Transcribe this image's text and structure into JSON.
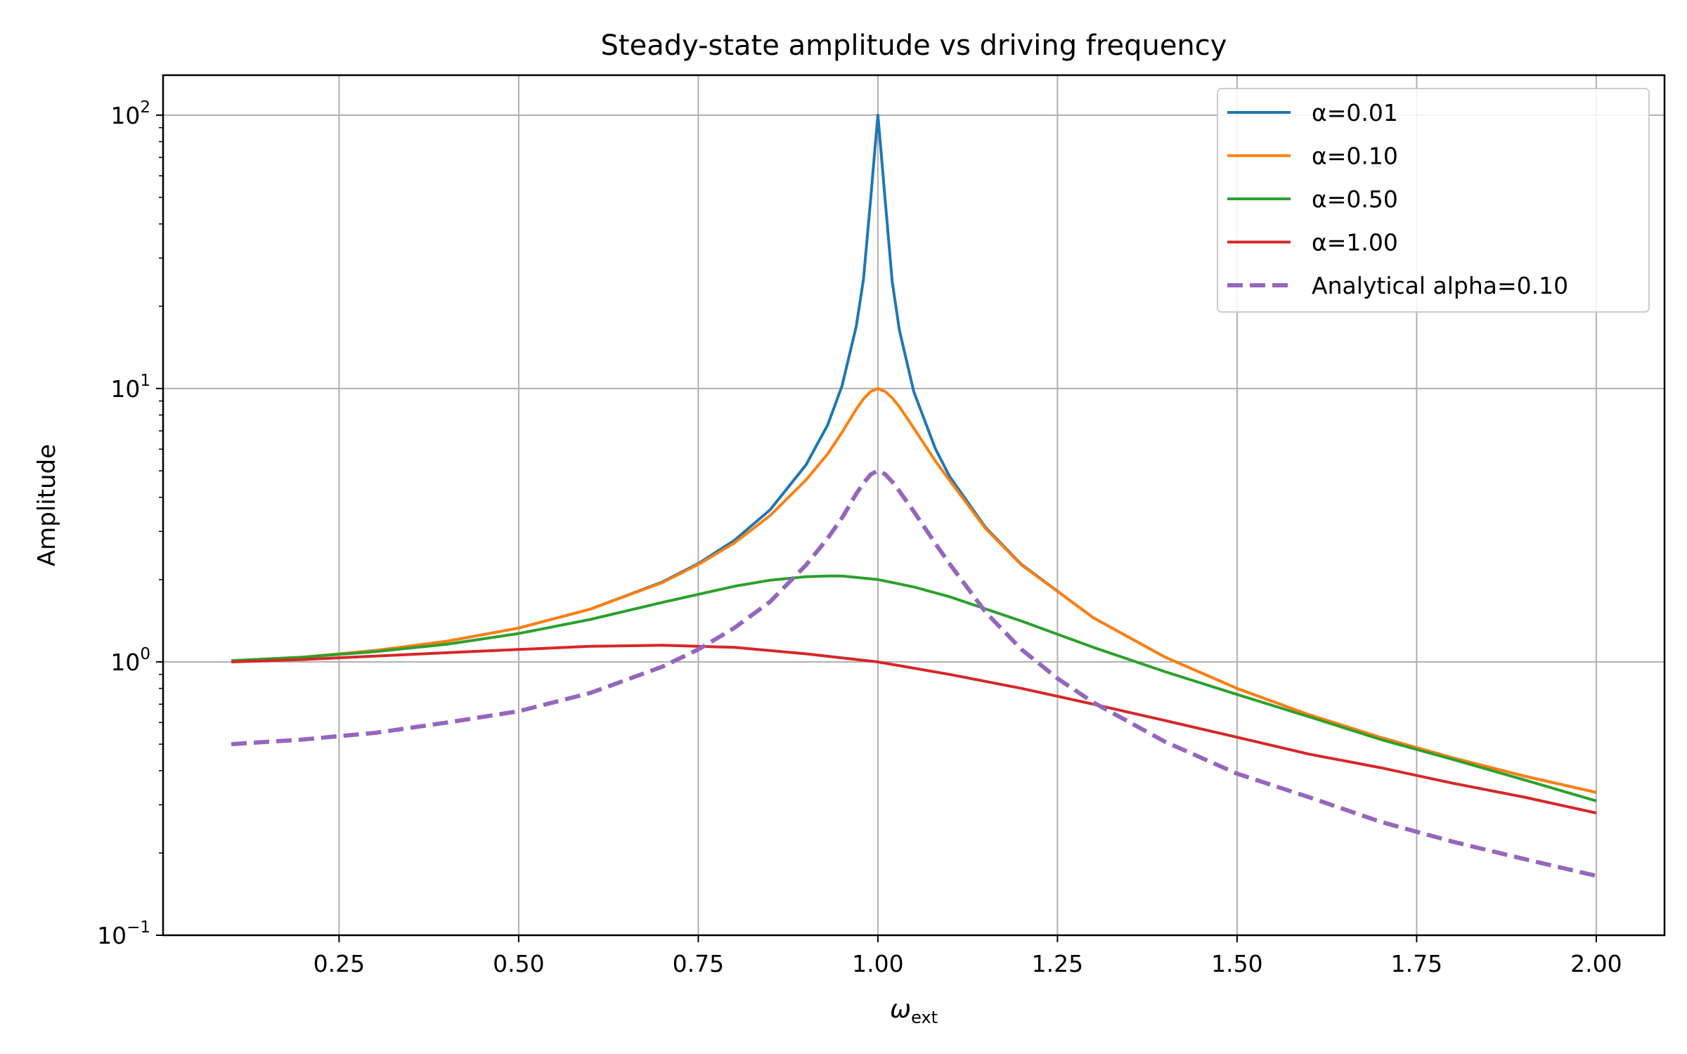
{
  "chart_data": {
    "type": "line",
    "title": "Steady-state amplitude vs driving frequency",
    "xlabel": "ω",
    "xlabel_sub": "ext",
    "ylabel": "Amplitude",
    "xscale": "linear",
    "yscale": "log",
    "xlim": [
      0.005,
      2.095
    ],
    "ylim": [
      0.1,
      140
    ],
    "grid": true,
    "legend_position": "upper right",
    "x_ticks": [
      {
        "value": 0.25,
        "label": "0.25"
      },
      {
        "value": 0.5,
        "label": "0.50"
      },
      {
        "value": 0.75,
        "label": "0.75"
      },
      {
        "value": 1.0,
        "label": "1.00"
      },
      {
        "value": 1.25,
        "label": "1.25"
      },
      {
        "value": 1.5,
        "label": "1.50"
      },
      {
        "value": 1.75,
        "label": "1.75"
      },
      {
        "value": 2.0,
        "label": "2.00"
      }
    ],
    "y_ticks": [
      {
        "value": 0.1,
        "base": "10",
        "exp": "−1"
      },
      {
        "value": 1,
        "base": "10",
        "exp": "0"
      },
      {
        "value": 10,
        "base": "10",
        "exp": "1"
      },
      {
        "value": 100,
        "base": "10",
        "exp": "2"
      }
    ],
    "series": [
      {
        "name": "α=0.01",
        "color": "#1f77b4",
        "style": "solid",
        "x": [
          0.1,
          0.2,
          0.3,
          0.4,
          0.5,
          0.6,
          0.7,
          0.75,
          0.8,
          0.85,
          0.9,
          0.93,
          0.95,
          0.97,
          0.98,
          0.99,
          0.995,
          1.0,
          1.005,
          1.01,
          1.02,
          1.03,
          1.05,
          1.08,
          1.1,
          1.15,
          1.2,
          1.3,
          1.4,
          1.5,
          1.6,
          1.7,
          1.8,
          1.9,
          2.0
        ],
        "y": [
          1.01,
          1.04,
          1.1,
          1.19,
          1.33,
          1.56,
          1.96,
          2.29,
          2.78,
          3.6,
          5.26,
          7.35,
          10.2,
          16.9,
          25.2,
          49.5,
          70.7,
          100,
          70.7,
          49.5,
          24.6,
          16.3,
          9.74,
          6.02,
          4.76,
          3.1,
          2.27,
          1.45,
          1.04,
          0.8,
          0.641,
          0.529,
          0.446,
          0.382,
          0.333
        ]
      },
      {
        "name": "α=0.10",
        "color": "#ff7f0e",
        "style": "solid",
        "x": [
          0.1,
          0.2,
          0.3,
          0.4,
          0.5,
          0.6,
          0.7,
          0.75,
          0.8,
          0.85,
          0.9,
          0.93,
          0.95,
          0.97,
          0.98,
          0.99,
          1.0,
          1.01,
          1.02,
          1.03,
          1.05,
          1.08,
          1.1,
          1.15,
          1.2,
          1.3,
          1.4,
          1.5,
          1.6,
          1.7,
          1.8,
          1.9,
          2.0
        ],
        "y": [
          1.01,
          1.04,
          1.1,
          1.19,
          1.33,
          1.56,
          1.95,
          2.27,
          2.72,
          3.43,
          4.63,
          5.76,
          6.91,
          8.41,
          9.16,
          9.75,
          10.0,
          9.76,
          9.24,
          8.57,
          7.16,
          5.43,
          4.6,
          3.07,
          2.26,
          1.45,
          1.04,
          0.8,
          0.641,
          0.529,
          0.446,
          0.382,
          0.333
        ]
      },
      {
        "name": "α=0.50",
        "color": "#2ca02c",
        "style": "solid",
        "x": [
          0.1,
          0.2,
          0.3,
          0.4,
          0.5,
          0.6,
          0.7,
          0.8,
          0.85,
          0.9,
          0.93,
          0.95,
          1.0,
          1.05,
          1.1,
          1.2,
          1.3,
          1.4,
          1.5,
          1.6,
          1.7,
          1.8,
          1.9,
          2.0
        ],
        "y": [
          1.01,
          1.04,
          1.09,
          1.16,
          1.27,
          1.43,
          1.65,
          1.89,
          1.99,
          2.05,
          2.06,
          2.06,
          2.0,
          1.88,
          1.73,
          1.41,
          1.13,
          0.92,
          0.76,
          0.63,
          0.52,
          0.44,
          0.37,
          0.31
        ]
      },
      {
        "name": "α=1.00",
        "color": "#d62728",
        "style": "solid",
        "x": [
          0.1,
          0.2,
          0.3,
          0.4,
          0.5,
          0.6,
          0.7,
          0.8,
          0.9,
          1.0,
          1.1,
          1.2,
          1.3,
          1.4,
          1.5,
          1.6,
          1.7,
          1.8,
          1.9,
          2.0
        ],
        "y": [
          1.0,
          1.02,
          1.05,
          1.08,
          1.11,
          1.14,
          1.15,
          1.13,
          1.07,
          1.0,
          0.9,
          0.8,
          0.7,
          0.61,
          0.53,
          0.46,
          0.41,
          0.36,
          0.32,
          0.28
        ]
      },
      {
        "name": "Analytical alpha=0.10",
        "color": "#9467bd",
        "style": "dashed",
        "x": [
          0.1,
          0.2,
          0.3,
          0.4,
          0.5,
          0.6,
          0.7,
          0.75,
          0.8,
          0.85,
          0.9,
          0.93,
          0.95,
          0.97,
          0.98,
          0.99,
          1.0,
          1.01,
          1.02,
          1.03,
          1.05,
          1.08,
          1.1,
          1.15,
          1.2,
          1.25,
          1.3,
          1.4,
          1.5,
          1.6,
          1.7,
          1.8,
          1.9,
          2.0
        ],
        "y": [
          0.5,
          0.52,
          0.55,
          0.6,
          0.66,
          0.77,
          0.96,
          1.11,
          1.33,
          1.66,
          2.26,
          2.83,
          3.36,
          4.12,
          4.51,
          4.85,
          5.0,
          4.86,
          4.56,
          4.21,
          3.55,
          2.71,
          2.28,
          1.52,
          1.11,
          0.87,
          0.71,
          0.51,
          0.39,
          0.32,
          0.26,
          0.22,
          0.19,
          0.165
        ]
      }
    ]
  }
}
